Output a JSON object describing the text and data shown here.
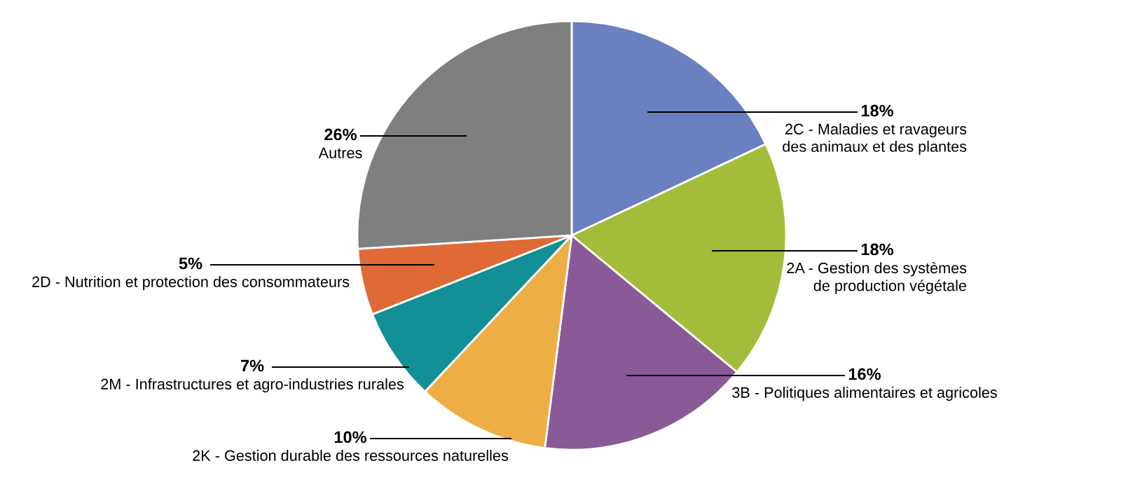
{
  "chart_data": {
    "type": "pie",
    "categories": [
      "2C - Maladies et ravageurs\ndes animaux et des plantes",
      "2A - Gestion des systèmes\nde production végétale",
      "3B - Politiques alimentaires et agricoles",
      "2K - Gestion durable des ressources naturelles",
      "2M - Infrastructures et agro-industries rurales",
      "2D - Nutrition et protection des consommateurs",
      "Autres"
    ],
    "values": [
      18,
      18,
      16,
      10,
      7,
      5,
      26
    ],
    "value_labels": [
      "18%",
      "18%",
      "16%",
      "10%",
      "7%",
      "5%",
      "26%"
    ],
    "colors": [
      "#6b80c0",
      "#a3bd3a",
      "#8a5a98",
      "#eeae46",
      "#138f96",
      "#df6a36",
      "#7e807f"
    ]
  }
}
